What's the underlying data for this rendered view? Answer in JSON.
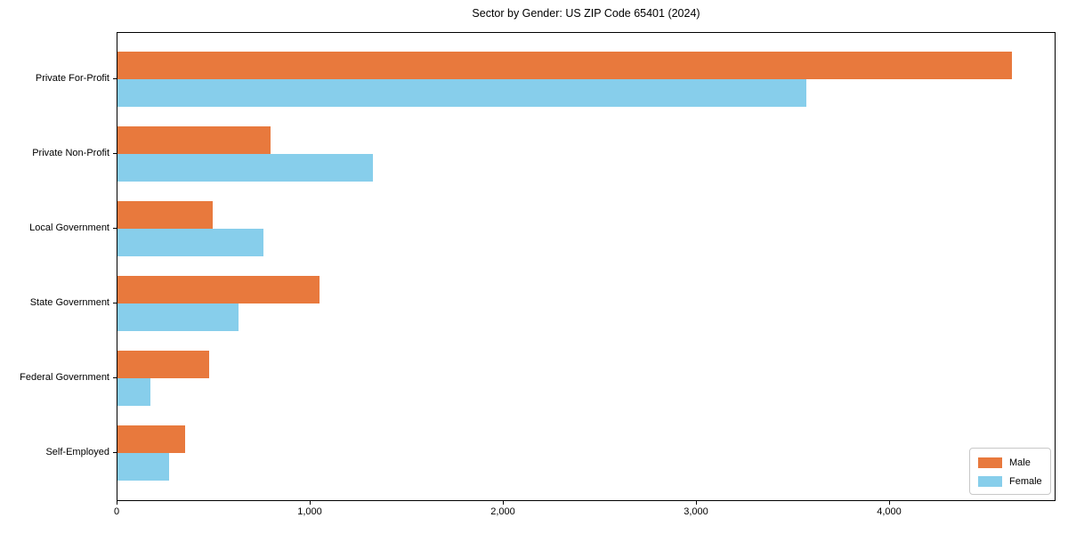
{
  "chart_data": {
    "type": "bar",
    "orientation": "horizontal",
    "title": "Sector by Gender: US ZIP Code 65401 (2024)",
    "categories": [
      "Private For-Profit",
      "Private Non-Profit",
      "Local Government",
      "State Government",
      "Federal Government",
      "Self-Employed"
    ],
    "series": [
      {
        "name": "Male",
        "color": "#e8793d",
        "values": [
          4630,
          792,
          495,
          1048,
          473,
          352
        ]
      },
      {
        "name": "Female",
        "color": "#87ceeb",
        "values": [
          3564,
          1320,
          756,
          625,
          172,
          266
        ]
      }
    ],
    "xlabel": "",
    "ylabel": "",
    "xlim": [
      0,
      4860
    ],
    "x_ticks": [
      0,
      1000,
      2000,
      3000,
      4000
    ],
    "x_tick_labels": [
      "0",
      "1,000",
      "2,000",
      "3,000",
      "4,000"
    ],
    "grid": false,
    "legend_position": "lower right"
  }
}
